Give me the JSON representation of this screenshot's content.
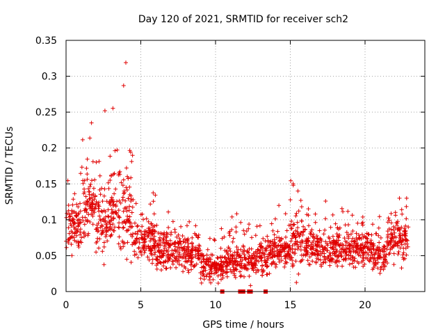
{
  "chart_data": {
    "type": "scatter",
    "title": "Day 120 of 2021, SRMTID for receiver sch2",
    "xlabel": "GPS time / hours",
    "ylabel": "SRMTID / TECUs",
    "xlim": [
      0,
      24
    ],
    "ylim": [
      0,
      0.35
    ],
    "xticks": [
      0,
      5,
      10,
      15,
      20
    ],
    "xtick_labels": [
      "0",
      "5",
      "10",
      "15",
      "20"
    ],
    "yticks": [
      0,
      0.05,
      0.1,
      0.15,
      0.2,
      0.25,
      0.3,
      0.35
    ],
    "ytick_labels": [
      "0",
      "0.05",
      "0.1",
      "0.15",
      "0.2",
      "0.25",
      "0.3",
      "0.35"
    ],
    "grid": true,
    "marker": "+",
    "color": "#e00000",
    "gap_markers_x": [
      10.45,
      11.65,
      11.85,
      12.25,
      12.35,
      13.35
    ],
    "series_profile": {
      "x_range": [
        0,
        22.9
      ],
      "segments": [
        {
          "x": [
            0.0,
            1.0
          ],
          "median": 0.09,
          "spread": 0.05
        },
        {
          "x": [
            1.0,
            2.0
          ],
          "median": 0.12,
          "spread": 0.07
        },
        {
          "x": [
            2.0,
            3.0
          ],
          "median": 0.1,
          "spread": 0.07
        },
        {
          "x": [
            3.0,
            4.5
          ],
          "median": 0.11,
          "spread": 0.1
        },
        {
          "x": [
            4.5,
            6.0
          ],
          "median": 0.07,
          "spread": 0.05
        },
        {
          "x": [
            6.0,
            9.0
          ],
          "median": 0.055,
          "spread": 0.04
        },
        {
          "x": [
            9.0,
            10.5
          ],
          "median": 0.035,
          "spread": 0.03
        },
        {
          "x": [
            10.5,
            13.5
          ],
          "median": 0.045,
          "spread": 0.04
        },
        {
          "x": [
            13.5,
            15.0
          ],
          "median": 0.055,
          "spread": 0.04
        },
        {
          "x": [
            15.0,
            16.0
          ],
          "median": 0.07,
          "spread": 0.06
        },
        {
          "x": [
            16.0,
            20.5
          ],
          "median": 0.06,
          "spread": 0.04
        },
        {
          "x": [
            20.5,
            21.5
          ],
          "median": 0.05,
          "spread": 0.035
        },
        {
          "x": [
            21.5,
            22.9
          ],
          "median": 0.075,
          "spread": 0.05
        }
      ],
      "notable_points": [
        [
          4.0,
          0.319
        ],
        [
          3.85,
          0.287
        ],
        [
          2.6,
          0.252
        ],
        [
          1.7,
          0.235
        ],
        [
          15.2,
          0.148
        ],
        [
          22.3,
          0.13
        ]
      ]
    }
  }
}
